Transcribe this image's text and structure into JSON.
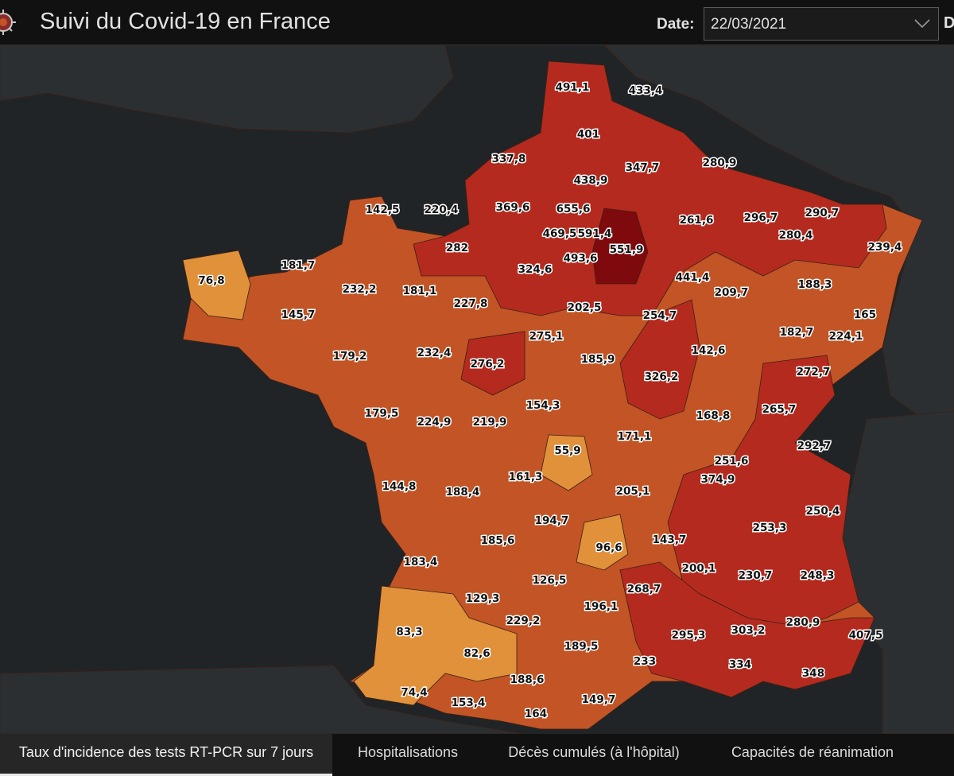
{
  "app": {
    "title": "Suivi du Covid-19 en France"
  },
  "date_filter": {
    "label": "Date:",
    "value": "22/03/2021",
    "next_label": "D"
  },
  "tabs": [
    {
      "label": "Taux d'incidence des tests RT-PCR sur 7 jours",
      "active": true
    },
    {
      "label": "Hospitalisations",
      "active": false
    },
    {
      "label": "Décès cumulés (à l'hôpital)",
      "active": false
    },
    {
      "label": "Capacités de réanimation",
      "active": false
    }
  ],
  "colors": {
    "background": "#212426",
    "land": "#2c2f31",
    "low": "#e1913a",
    "mid": "#c25425",
    "high": "#b52a1e",
    "very_high": "#7e0a0d"
  },
  "map": {
    "legend_visible": false,
    "labels": [
      "491,1",
      "433,4",
      "401",
      "337,8",
      "347,7",
      "280,9",
      "438,9",
      "142,5",
      "220,4",
      "369,6",
      "655,6",
      "261,6",
      "296,7",
      "290,7",
      "469,5",
      "591,4",
      "280,4",
      "282",
      "493,6",
      "551,9",
      "239,4",
      "181,7",
      "324,6",
      "441,4",
      "76,8",
      "232,2",
      "181,1",
      "188,3",
      "227,8",
      "209,7",
      "202,5",
      "145,7",
      "254,7",
      "165",
      "182,7",
      "224,1",
      "275,1",
      "179,2",
      "232,4",
      "142,6",
      "276,2",
      "272,7",
      "185,9",
      "326,2",
      "154,3",
      "265,7",
      "179,5",
      "224,9",
      "219,9",
      "168,8",
      "171,1",
      "55,9",
      "251,6",
      "292,7",
      "374,9",
      "144,8",
      "188,4",
      "161,3",
      "205,1",
      "250,4",
      "194,7",
      "253,3",
      "185,6",
      "96,6",
      "143,7",
      "183,4",
      "200,1",
      "230,7",
      "248,3",
      "126,5",
      "268,7",
      "129,3",
      "196,1",
      "83,3",
      "229,2",
      "280,9",
      "303,2",
      "295,3",
      "407,5",
      "82,6",
      "189,5",
      "233",
      "334",
      "188,6",
      "348",
      "74,4",
      "153,4",
      "149,7",
      "164"
    ]
  }
}
